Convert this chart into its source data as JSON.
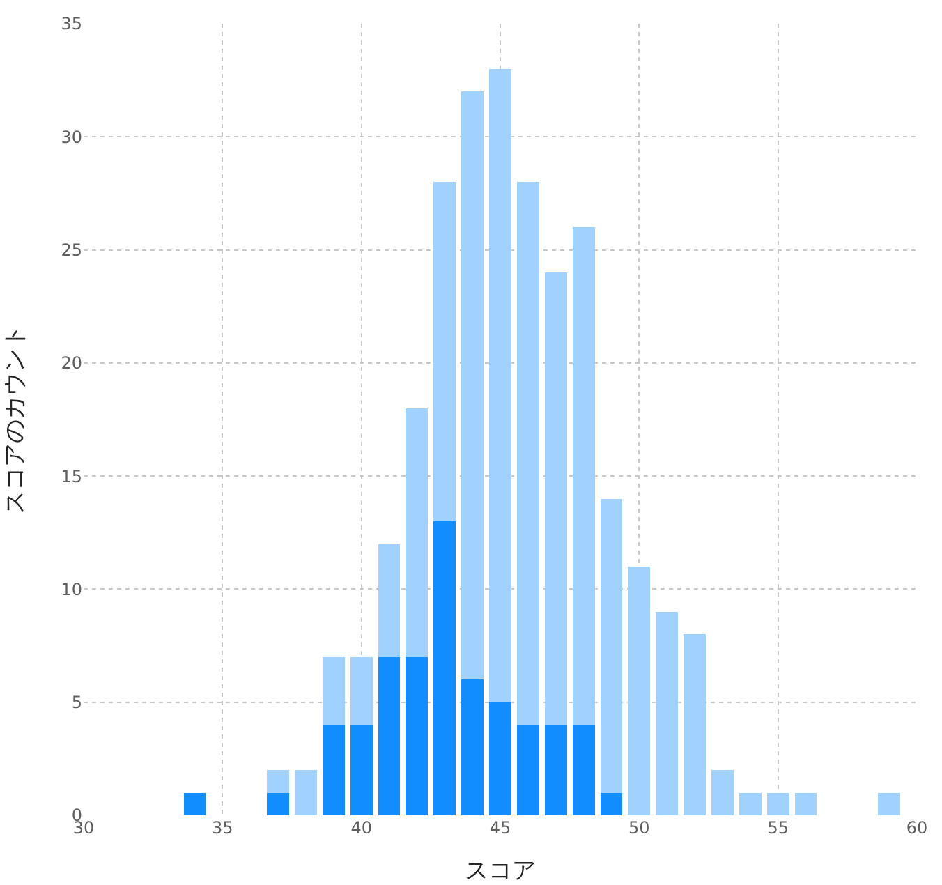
{
  "chart_data": {
    "type": "bar",
    "stacked": true,
    "xlabel": "スコア",
    "ylabel": "スコアのカウント",
    "x": [
      34,
      37,
      38,
      39,
      40,
      41,
      42,
      43,
      44,
      45,
      46,
      47,
      48,
      49,
      50,
      51,
      52,
      53,
      54,
      55,
      56,
      59
    ],
    "series": [
      {
        "color": "#118dff",
        "values": [
          1,
          1,
          0,
          4,
          4,
          7,
          7,
          13,
          6,
          5,
          4,
          4,
          4,
          1,
          0,
          0,
          0,
          0,
          0,
          0,
          0,
          0
        ]
      },
      {
        "color": "#a0d1ff",
        "values": [
          0,
          1,
          2,
          3,
          3,
          5,
          11,
          15,
          26,
          28,
          24,
          20,
          22,
          13,
          11,
          9,
          8,
          2,
          1,
          1,
          1,
          1
        ]
      }
    ],
    "xlim": [
      30,
      60
    ],
    "xticks": [
      30,
      35,
      40,
      45,
      50,
      55,
      60
    ],
    "ylim": [
      0,
      35
    ],
    "yticks": [
      0,
      5,
      10,
      15,
      20,
      25,
      30,
      35
    ],
    "grid": true
  }
}
